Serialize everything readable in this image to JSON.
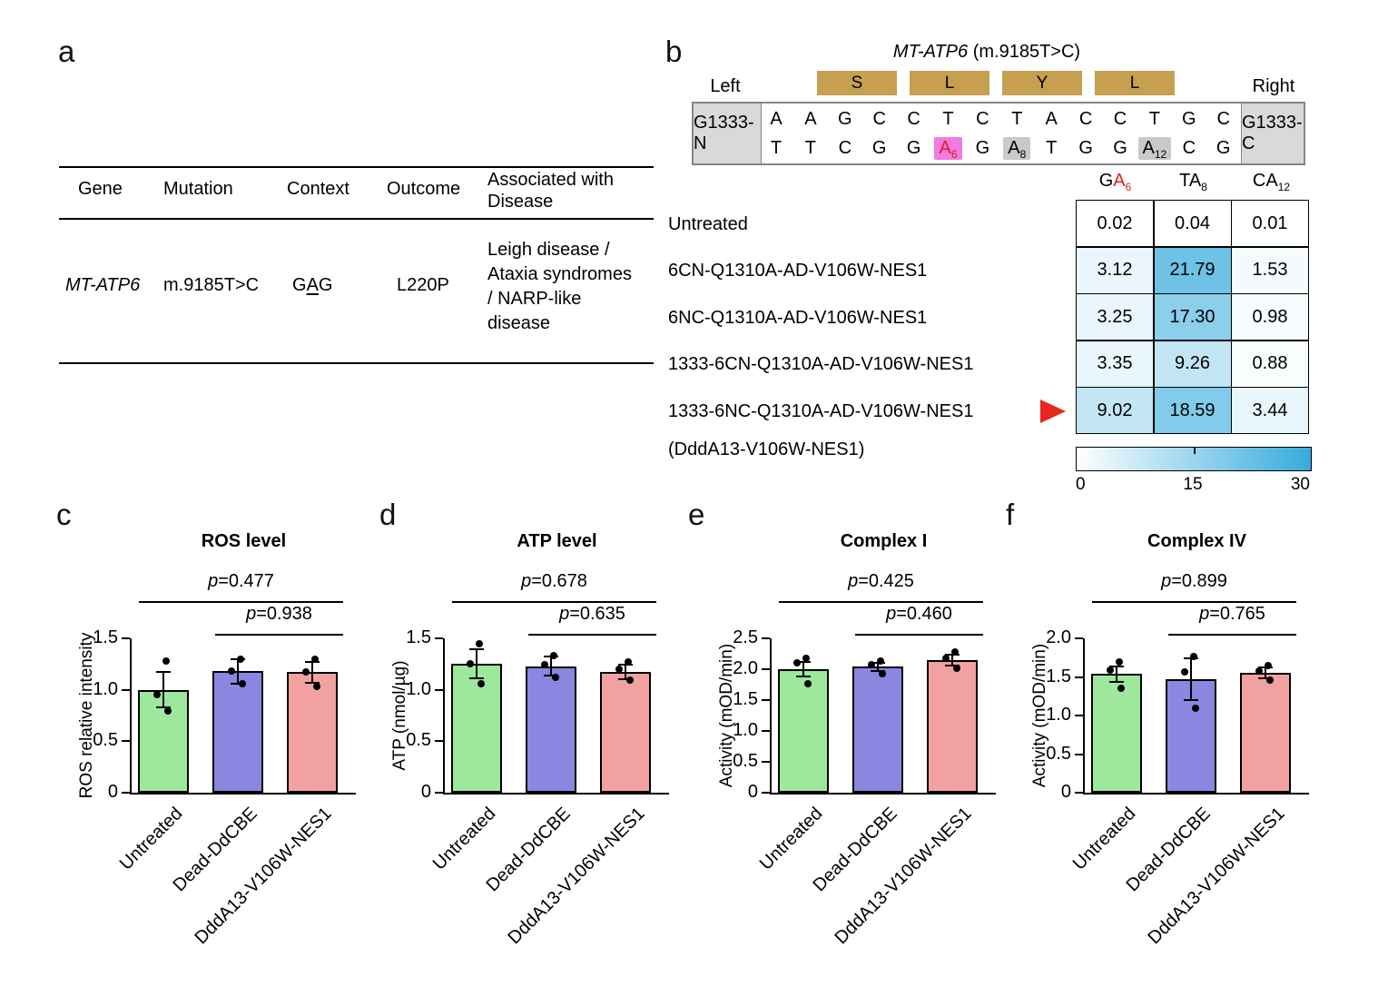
{
  "colors": {
    "bar_fills": [
      "#9de89d",
      "#8a87e0",
      "#f2a1a1"
    ],
    "heat_max": "#36abdd",
    "highlight_magenta": "#f27ae0",
    "highlight_gray": "#c9c9c9",
    "amino_box": "#c6a050",
    "arrow_red": "#e8261b",
    "mut_red": "#d62027"
  },
  "panels": {
    "a": "a",
    "b": "b",
    "c": "c",
    "d": "d",
    "e": "e",
    "f": "f"
  },
  "table_a": {
    "headers": {
      "gene": "Gene",
      "mutation": "Mutation",
      "context": "Context",
      "outcome": "Outcome",
      "disease_line1": "Associated with",
      "disease_line2": "Disease"
    },
    "row": {
      "gene": "MT-ATP6",
      "mutation": "m.9185T>C",
      "context_pre": "G",
      "context_mut": "A",
      "context_post": "G",
      "outcome": "L220P",
      "disease_lines": [
        "Leigh disease /",
        "Ataxia syndromes",
        "/ NARP-like",
        "disease"
      ]
    }
  },
  "seq_b": {
    "title_gene": "MT-ATP6",
    "title_rest": " (m.9185T>C)",
    "left_label": "Left",
    "right_label": "Right",
    "left_box": "G1333-N",
    "right_box": "G1333-C",
    "amino_acids": [
      "S",
      "L",
      "Y",
      "L"
    ],
    "top": [
      "A",
      "A",
      "G",
      "C",
      "C",
      "T",
      "C",
      "T",
      "A",
      "C",
      "C",
      "T",
      "G",
      "C"
    ],
    "bottom": [
      {
        "b": "T"
      },
      {
        "b": "T"
      },
      {
        "b": "C"
      },
      {
        "b": "G"
      },
      {
        "b": "G"
      },
      {
        "b": "A",
        "s": "6",
        "h": "m"
      },
      {
        "b": "G"
      },
      {
        "b": "A",
        "s": "8",
        "h": "g"
      },
      {
        "b": "T"
      },
      {
        "b": "G"
      },
      {
        "b": "G"
      },
      {
        "b": "A",
        "s": "12",
        "h": "g"
      },
      {
        "b": "C"
      },
      {
        "b": "G"
      }
    ]
  },
  "chart_data": [
    {
      "type": "heatmap",
      "columns": [
        {
          "pre": "G",
          "a": "A",
          "sub": "6",
          "mut": true
        },
        {
          "pre": "T",
          "a": "A",
          "sub": "8",
          "mut": false
        },
        {
          "pre": "C",
          "a": "A",
          "sub": "12",
          "mut": false
        }
      ],
      "rows": [
        {
          "label": "Untreated",
          "values": [
            "0.02",
            "0.04",
            "0.01"
          ],
          "arrow": false
        },
        {
          "label": "6CN-Q1310A-AD-V106W-NES1",
          "values": [
            "3.12",
            "21.79",
            "1.53"
          ],
          "arrow": false
        },
        {
          "label": "6NC-Q1310A-AD-V106W-NES1",
          "values": [
            "3.25",
            "17.30",
            "0.98"
          ],
          "arrow": false
        },
        {
          "label": "1333-6CN-Q1310A-AD-V106W-NES1",
          "values": [
            "3.35",
            "9.26",
            "0.88"
          ],
          "arrow": false
        },
        {
          "label": "1333-6NC-Q1310A-AD-V106W-NES1",
          "values": [
            "9.02",
            "18.59",
            "3.44"
          ],
          "arrow": true
        }
      ],
      "footnote": "(DddA13-V106W-NES1)",
      "scale": {
        "min": 0,
        "max": 30,
        "ticks": [
          "0",
          "15",
          "30"
        ]
      }
    },
    {
      "type": "bar",
      "panel": "c",
      "title": "ROS level",
      "ylabel": "ROS relative intensity",
      "ylim": [
        0,
        1.5
      ],
      "yticks": [
        "0",
        "0.5",
        "1.0",
        "1.5"
      ],
      "categories": [
        "Untreated",
        "Dead-DdCBE",
        "DddA13-V106W-NES1"
      ],
      "values": [
        1.0,
        1.18,
        1.17
      ],
      "errors": [
        0.17,
        0.12,
        0.1
      ],
      "points": [
        [
          1.28,
          0.95,
          0.79
        ],
        [
          1.3,
          1.18,
          1.06
        ],
        [
          1.3,
          1.17,
          1.03
        ]
      ],
      "p_annotations": [
        {
          "p": "0.477",
          "from": 0,
          "to": 2
        },
        {
          "p": "0.938",
          "from": 1,
          "to": 2
        }
      ]
    },
    {
      "type": "bar",
      "panel": "d",
      "title": "ATP level",
      "ylabel": "ATP (nmol/µg)",
      "ylim": [
        0,
        1.5
      ],
      "yticks": [
        "0",
        "0.5",
        "1.0",
        "1.5"
      ],
      "categories": [
        "Untreated",
        "Dead-DdCBE",
        "DddA13-V106W-NES1"
      ],
      "values": [
        1.25,
        1.23,
        1.17
      ],
      "errors": [
        0.14,
        0.09,
        0.07
      ],
      "points": [
        [
          1.45,
          1.25,
          1.06
        ],
        [
          1.33,
          1.24,
          1.12
        ],
        [
          1.27,
          1.2,
          1.09
        ]
      ],
      "p_annotations": [
        {
          "p": "0.678",
          "from": 0,
          "to": 2
        },
        {
          "p": "0.635",
          "from": 1,
          "to": 2
        }
      ]
    },
    {
      "type": "bar",
      "panel": "e",
      "title": "Complex I",
      "ylabel": "Activity (mOD/min)",
      "ylim": [
        0,
        2.5
      ],
      "yticks": [
        "0",
        "0.5",
        "1.0",
        "1.5",
        "2.0",
        "2.5"
      ],
      "categories": [
        "Untreated",
        "Dead-DdCBE",
        "DddA13-V106W-NES1"
      ],
      "values": [
        2.0,
        2.04,
        2.15
      ],
      "errors": [
        0.12,
        0.07,
        0.09
      ],
      "points": [
        [
          2.18,
          2.1,
          1.76
        ],
        [
          2.13,
          2.08,
          1.93
        ],
        [
          2.28,
          2.17,
          2.02
        ]
      ],
      "p_annotations": [
        {
          "p": "0.425",
          "from": 0,
          "to": 2
        },
        {
          "p": "0.460",
          "from": 1,
          "to": 2
        }
      ]
    },
    {
      "type": "bar",
      "panel": "f",
      "title": "Complex IV",
      "ylabel": "Activity (mOD/min)",
      "ylim": [
        0,
        2.0
      ],
      "yticks": [
        "0",
        "0.5",
        "1.0",
        "1.5",
        "2.0"
      ],
      "categories": [
        "Untreated",
        "Dead-DdCBE",
        "DddA13-V106W-NES1"
      ],
      "values": [
        1.54,
        1.47,
        1.55
      ],
      "errors": [
        0.1,
        0.27,
        0.07
      ],
      "points": [
        [
          1.69,
          1.59,
          1.35
        ],
        [
          1.76,
          1.56,
          1.1
        ],
        [
          1.65,
          1.58,
          1.46
        ]
      ],
      "p_annotations": [
        {
          "p": "0.899",
          "from": 0,
          "to": 2
        },
        {
          "p": "0.765",
          "from": 1,
          "to": 2
        }
      ]
    }
  ]
}
